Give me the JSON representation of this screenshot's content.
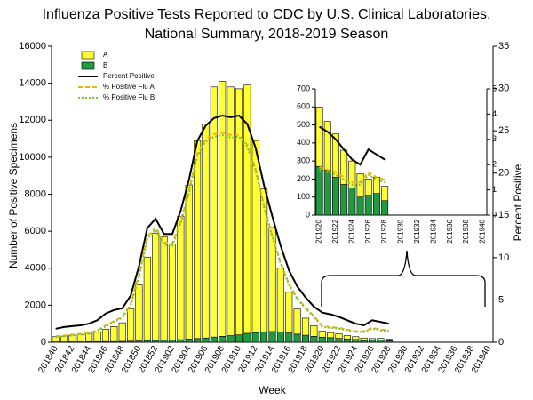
{
  "chart_data": [
    {
      "type": "bar",
      "title": [
        "Influenza Positive Tests Reported to CDC by U.S. Clinical Laboratories,",
        "National Summary,  2018-2019 Season"
      ],
      "x_label": "Week",
      "y_label": "Number of Positive Specimens",
      "y2_label": "Percent Positive",
      "categories": [
        "201840",
        null,
        "201842",
        null,
        "201844",
        null,
        "201846",
        null,
        "201848",
        null,
        "201850",
        null,
        "201852",
        null,
        "201902",
        null,
        "201904",
        null,
        "201906",
        null,
        "201908",
        null,
        "201910",
        null,
        "201912",
        null,
        "201914",
        null,
        "201916",
        null,
        "201918",
        null,
        "201920",
        null,
        "201922",
        null,
        "201924",
        null,
        "201926",
        null,
        "201928",
        null,
        "201930",
        null,
        "201932",
        null,
        "201934",
        null,
        "201936",
        null,
        "201938",
        null,
        "201940"
      ],
      "stacked": true,
      "legend": "upper left",
      "ylim": [
        0,
        16000
      ],
      "yticks": [
        0,
        2000,
        4000,
        6000,
        8000,
        10000,
        12000,
        14000,
        16000
      ],
      "y2lim": [
        0,
        35
      ],
      "y2ticks": [
        0,
        5,
        10,
        15,
        20,
        25,
        30,
        35
      ],
      "series": [
        {
          "name": "A",
          "color": "#ffff33",
          "values": [
            280,
            310,
            355,
            395,
            450,
            530,
            660,
            810,
            1000,
            1740,
            3030,
            4510,
            5800,
            5590,
            5180,
            6660,
            8330,
            10700,
            11570,
            13520,
            13780,
            13440,
            13300,
            13420,
            10380,
            7740,
            5620,
            3440,
            2200,
            1360,
            920,
            580,
            330,
            270,
            240,
            190,
            150,
            130,
            90,
            90,
            80,
            null,
            null,
            null,
            null,
            null,
            null,
            null,
            null,
            null,
            null,
            null,
            null
          ]
        },
        {
          "name": "B",
          "color": "#1f9a3e",
          "values": [
            20,
            20,
            25,
            25,
            30,
            30,
            40,
            40,
            50,
            60,
            70,
            90,
            100,
            110,
            120,
            140,
            170,
            200,
            230,
            280,
            320,
            360,
            400,
            480,
            520,
            560,
            580,
            560,
            500,
            440,
            380,
            320,
            270,
            250,
            210,
            170,
            150,
            100,
            110,
            120,
            80,
            null,
            null,
            null,
            null,
            null,
            null,
            null,
            null,
            null,
            null,
            null,
            null
          ]
        },
        {
          "name": "Percent Positive",
          "color": "#000000",
          "axis": "y2",
          "dash": "solid",
          "values": [
            1.6,
            1.8,
            1.9,
            2.0,
            2.2,
            2.6,
            3.4,
            3.8,
            4.0,
            5.5,
            9.0,
            13.5,
            14.6,
            12.8,
            12.8,
            15.5,
            19.2,
            23.8,
            25.6,
            26.5,
            26.8,
            26.6,
            26.8,
            25.8,
            23.0,
            18.6,
            14.9,
            11.4,
            8.5,
            6.6,
            5.3,
            4.2,
            3.5,
            3.3,
            3.0,
            2.6,
            2.2,
            2.0,
            2.6,
            2.4,
            2.2,
            null,
            null,
            null,
            null,
            null,
            null,
            null,
            null,
            null,
            null,
            null,
            null
          ]
        },
        {
          "name": "% Positive Flu A",
          "color": "#f0b400",
          "axis": "y2",
          "dash": "dashed",
          "values": [
            0.7,
            0.8,
            0.9,
            1.0,
            1.1,
            1.4,
            2.0,
            2.5,
            3.0,
            4.5,
            8.0,
            12.5,
            13.6,
            11.8,
            11.7,
            14.3,
            17.9,
            22.3,
            24.0,
            24.6,
            24.8,
            24.5,
            24.5,
            23.3,
            20.5,
            16.2,
            12.6,
            9.4,
            6.9,
            5.2,
            4.1,
            3.1,
            1.9,
            1.8,
            1.7,
            1.5,
            1.3,
            1.3,
            1.7,
            1.5,
            1.4,
            null,
            null,
            null,
            null,
            null,
            null,
            null,
            null,
            null,
            null,
            null,
            null
          ]
        },
        {
          "name": "% Positive Flu B",
          "color": "#7fc241",
          "axis": "y2",
          "dash": "dotted",
          "values": [
            0.6,
            0.7,
            0.8,
            0.9,
            1.0,
            1.3,
            1.9,
            2.4,
            2.9,
            4.3,
            7.7,
            12.2,
            13.3,
            11.5,
            11.4,
            14.0,
            17.6,
            22.0,
            23.7,
            24.3,
            24.5,
            24.2,
            24.3,
            23.1,
            20.3,
            16.0,
            12.5,
            9.3,
            6.8,
            5.1,
            4.0,
            3.0,
            1.8,
            1.7,
            1.6,
            1.4,
            1.2,
            1.2,
            1.6,
            1.4,
            1.3,
            null,
            null,
            null,
            null,
            null,
            null,
            null,
            null,
            null,
            null,
            null,
            null
          ]
        }
      ]
    },
    {
      "type": "bar",
      "categories": [
        "201920",
        null,
        "201922",
        null,
        "201924",
        null,
        "201926",
        null,
        "201928",
        null,
        "201930",
        null,
        "201932",
        null,
        "201934",
        null,
        "201936",
        null,
        "201938",
        null,
        "201940"
      ],
      "stacked": true,
      "ylim": [
        0,
        700
      ],
      "yticks": [
        0,
        100,
        200,
        300,
        400,
        500,
        600,
        700
      ],
      "y2lim": [
        0,
        5
      ],
      "y2ticks": [
        0,
        1,
        2,
        3,
        4,
        5
      ],
      "series": [
        {
          "name": "A",
          "color": "#ffff33",
          "values": [
            330,
            270,
            240,
            190,
            150,
            130,
            90,
            90,
            80,
            null,
            null,
            null,
            null,
            null,
            null,
            null,
            null,
            null,
            null,
            null,
            null
          ]
        },
        {
          "name": "B",
          "color": "#1f9a3e",
          "values": [
            270,
            250,
            210,
            170,
            150,
            100,
            110,
            120,
            80,
            null,
            null,
            null,
            null,
            null,
            null,
            null,
            null,
            null,
            null,
            null,
            null
          ]
        },
        {
          "name": "Percent Positive",
          "color": "#000000",
          "axis": "y2",
          "dash": "solid",
          "values": [
            3.5,
            3.3,
            3.0,
            2.6,
            2.2,
            2.0,
            2.6,
            2.4,
            2.2,
            null,
            null,
            null,
            null,
            null,
            null,
            null,
            null,
            null,
            null,
            null,
            null
          ]
        },
        {
          "name": "% Positive Flu A",
          "color": "#f0b400",
          "axis": "y2",
          "dash": "dashed",
          "values": [
            1.9,
            1.8,
            1.7,
            1.5,
            1.3,
            1.3,
            1.7,
            1.5,
            1.4,
            null,
            null,
            null,
            null,
            null,
            null,
            null,
            null,
            null,
            null,
            null,
            null
          ]
        },
        {
          "name": "% Positive Flu B",
          "color": "#7fc241",
          "axis": "y2",
          "dash": "dotted",
          "values": [
            1.8,
            1.7,
            1.6,
            1.4,
            1.2,
            1.2,
            1.6,
            1.4,
            1.3,
            null,
            null,
            null,
            null,
            null,
            null,
            null,
            null,
            null,
            null,
            null,
            null
          ]
        }
      ]
    }
  ]
}
